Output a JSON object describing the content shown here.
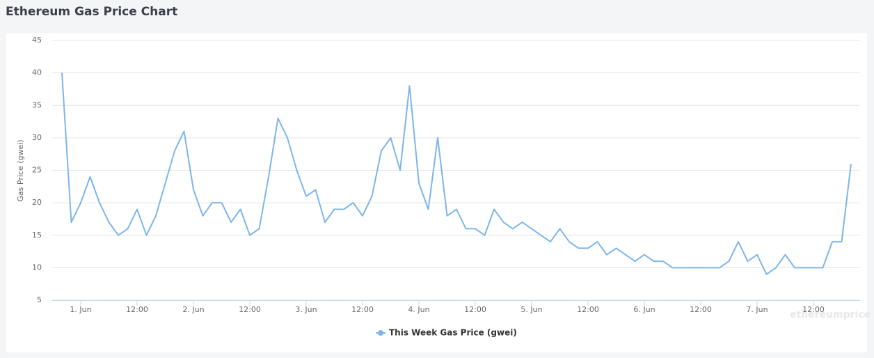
{
  "chart_data": {
    "type": "line",
    "title": "Ethereum Gas Price Chart",
    "y_label": "Gas Price (gwei)",
    "watermark": "ethereumprice",
    "categories": [
      null,
      null,
      "1. Jun",
      null,
      null,
      null,
      null,
      null,
      "12:00",
      null,
      null,
      null,
      null,
      null,
      "2. Jun",
      null,
      null,
      null,
      null,
      null,
      "12:00",
      null,
      null,
      null,
      null,
      null,
      "3. Jun",
      null,
      null,
      null,
      null,
      null,
      "12:00",
      null,
      null,
      null,
      null,
      null,
      "4. Jun",
      null,
      null,
      null,
      null,
      null,
      "12:00",
      null,
      null,
      null,
      null,
      null,
      "5. Jun",
      null,
      null,
      null,
      null,
      null,
      "12:00",
      null,
      null,
      null,
      null,
      null,
      "6. Jun",
      null,
      null,
      null,
      null,
      null,
      "12:00",
      null,
      null,
      null,
      null,
      null,
      "7. Jun",
      null,
      null,
      null,
      null,
      null,
      "12:00",
      null,
      null,
      null,
      null
    ],
    "series": [
      {
        "name": "This Week Gas Price (gwei)",
        "color": "#7cb5ec",
        "values": [
          40,
          17,
          20,
          24,
          20,
          17,
          15,
          16,
          19,
          15,
          18,
          23,
          28,
          31,
          22,
          18,
          20,
          20,
          17,
          19,
          15,
          16,
          24,
          33,
          30,
          25,
          21,
          22,
          17,
          19,
          19,
          20,
          18,
          21,
          28,
          30,
          25,
          38,
          23,
          19,
          30,
          18,
          19,
          16,
          16,
          15,
          19,
          17,
          16,
          17,
          16,
          15,
          14,
          16,
          14,
          13,
          13,
          14,
          12,
          13,
          12,
          11,
          12,
          11,
          11,
          10,
          10,
          10,
          10,
          10,
          10,
          11,
          14,
          11,
          12,
          9,
          10,
          12,
          10,
          10,
          10,
          10,
          14,
          14,
          26
        ]
      }
    ],
    "ylim": [
      5,
      45
    ],
    "yticks": [
      5,
      10,
      15,
      20,
      25,
      30,
      35,
      40,
      45
    ],
    "grid": true,
    "legend": "bottom"
  }
}
